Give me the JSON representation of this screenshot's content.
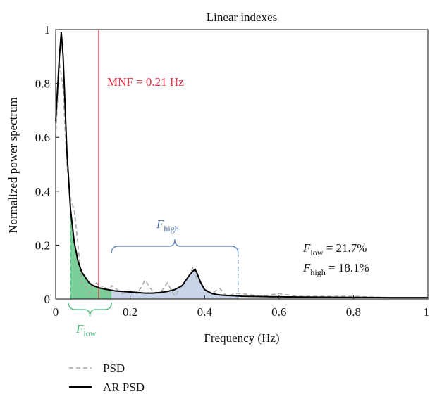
{
  "chart_data": {
    "type": "line",
    "title": "Linear indexes",
    "xlabel": "Frequency (Hz)",
    "ylabel": "Normalized power spectrum",
    "xlim": [
      0,
      1
    ],
    "ylim": [
      0,
      1
    ],
    "xticks": [
      0,
      0.2,
      0.4,
      0.6,
      0.8,
      1
    ],
    "yticks": [
      0,
      0.2,
      0.4,
      0.6,
      0.8,
      1
    ],
    "xtick_labels": [
      "0",
      "0.2",
      "0.4",
      "0.6",
      "0.8",
      "1"
    ],
    "ytick_labels": [
      "0",
      "0.2",
      "0.4",
      "0.6",
      "0.8",
      "1"
    ],
    "grid": false,
    "legend_position": "bottom-left",
    "series": [
      {
        "name": "PSD",
        "style": "dashed",
        "color": "#aaaaaa",
        "x": [
          0,
          0.01,
          0.02,
          0.03,
          0.04,
          0.05,
          0.06,
          0.07,
          0.08,
          0.09,
          0.1,
          0.11,
          0.12,
          0.13,
          0.14,
          0.15,
          0.16,
          0.18,
          0.2,
          0.22,
          0.24,
          0.26,
          0.28,
          0.3,
          0.32,
          0.34,
          0.36,
          0.37,
          0.38,
          0.39,
          0.4,
          0.42,
          0.44,
          0.46,
          0.48,
          0.5,
          0.55,
          0.6,
          0.65,
          0.7,
          0.8,
          0.9,
          1.0
        ],
        "y": [
          0.6,
          0.88,
          0.78,
          0.5,
          0.37,
          0.33,
          0.2,
          0.06,
          0.05,
          0.02,
          0.05,
          0.06,
          0.04,
          0.05,
          0.02,
          0.05,
          0.04,
          0.02,
          0.03,
          0.02,
          0.07,
          0.03,
          0.02,
          0.06,
          0.01,
          0.05,
          0.09,
          0.12,
          0.07,
          0.06,
          0.03,
          0.02,
          0.04,
          0.01,
          0.02,
          0.02,
          0.01,
          0.02,
          0.01,
          0.01,
          0.01,
          0.005,
          0.005
        ]
      },
      {
        "name": "AR PSD",
        "style": "solid",
        "color": "#000000",
        "x": [
          0,
          0.01,
          0.015,
          0.02,
          0.03,
          0.04,
          0.05,
          0.06,
          0.07,
          0.08,
          0.09,
          0.1,
          0.12,
          0.14,
          0.16,
          0.18,
          0.2,
          0.22,
          0.24,
          0.26,
          0.28,
          0.3,
          0.32,
          0.34,
          0.35,
          0.36,
          0.37,
          0.375,
          0.38,
          0.39,
          0.4,
          0.42,
          0.44,
          0.46,
          0.48,
          0.5,
          0.55,
          0.6,
          0.7,
          0.8,
          0.9,
          1.0
        ],
        "y": [
          0.66,
          0.9,
          0.99,
          0.9,
          0.55,
          0.33,
          0.21,
          0.14,
          0.1,
          0.08,
          0.06,
          0.05,
          0.04,
          0.035,
          0.03,
          0.028,
          0.026,
          0.024,
          0.022,
          0.022,
          0.024,
          0.028,
          0.035,
          0.05,
          0.07,
          0.09,
          0.105,
          0.11,
          0.095,
          0.06,
          0.035,
          0.02,
          0.015,
          0.013,
          0.012,
          0.01,
          0.009,
          0.008,
          0.007,
          0.006,
          0.005,
          0.005
        ]
      }
    ],
    "mnf_line": {
      "x": 0.21,
      "color": "#e0283c"
    },
    "bands": {
      "low": {
        "x_start": 0.04,
        "x_end": 0.15,
        "color": "#4cb87a"
      },
      "high": {
        "x_start": 0.15,
        "x_end": 0.49,
        "color": "#5b7fb5"
      }
    },
    "annotations": {
      "mnf": "MNF = 0.21 Hz",
      "f_high_label": "F",
      "f_high_sub": "high",
      "f_low_label": "F",
      "f_low_sub": "low",
      "stat_low_label": "F",
      "stat_low_sub": "low",
      "stat_low_value": " = 21.7%",
      "stat_high_label": "F",
      "stat_high_sub": "high",
      "stat_high_value": " = 18.1%"
    },
    "legend": [
      {
        "label": "PSD",
        "style": "dashed",
        "color": "#aaaaaa"
      },
      {
        "label": "AR PSD",
        "style": "solid",
        "color": "#000000"
      }
    ]
  }
}
